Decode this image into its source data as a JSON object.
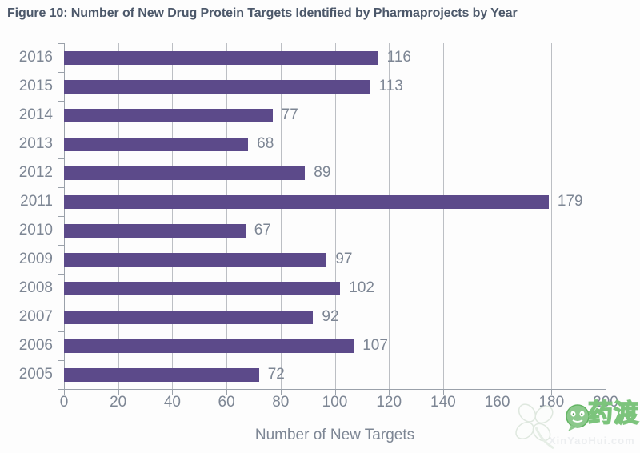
{
  "title": "Figure 10: Number of New Drug Protein Targets Identified by Pharmaprojects by Year",
  "chart_data": {
    "type": "bar",
    "orientation": "horizontal",
    "title": "Figure 10: Number of New Drug Protein Targets Identified by Pharmaprojects by Year",
    "categories": [
      "2016",
      "2015",
      "2014",
      "2013",
      "2012",
      "2011",
      "2010",
      "2009",
      "2008",
      "2007",
      "2006",
      "2005"
    ],
    "values": [
      116,
      113,
      77,
      68,
      89,
      179,
      67,
      97,
      102,
      92,
      107,
      72
    ],
    "xlabel": "Number of New Targets",
    "ylabel": "",
    "xlim": [
      0,
      200
    ],
    "xticks": [
      0,
      20,
      40,
      60,
      80,
      100,
      120,
      140,
      160,
      180,
      200
    ],
    "grid": true,
    "value_labels": true,
    "legend": "none"
  },
  "colors": {
    "bar": "#5c4a8a",
    "title_text": "#4c586a",
    "axis_text": "#7d8694",
    "gridline": "#bcbfc4",
    "axis_line": "#9aa1aa",
    "watermark_green": "#7cc47c"
  },
  "watermark": {
    "brand_cn": "药渡",
    "brand_url": "XinYaoHui.com"
  }
}
